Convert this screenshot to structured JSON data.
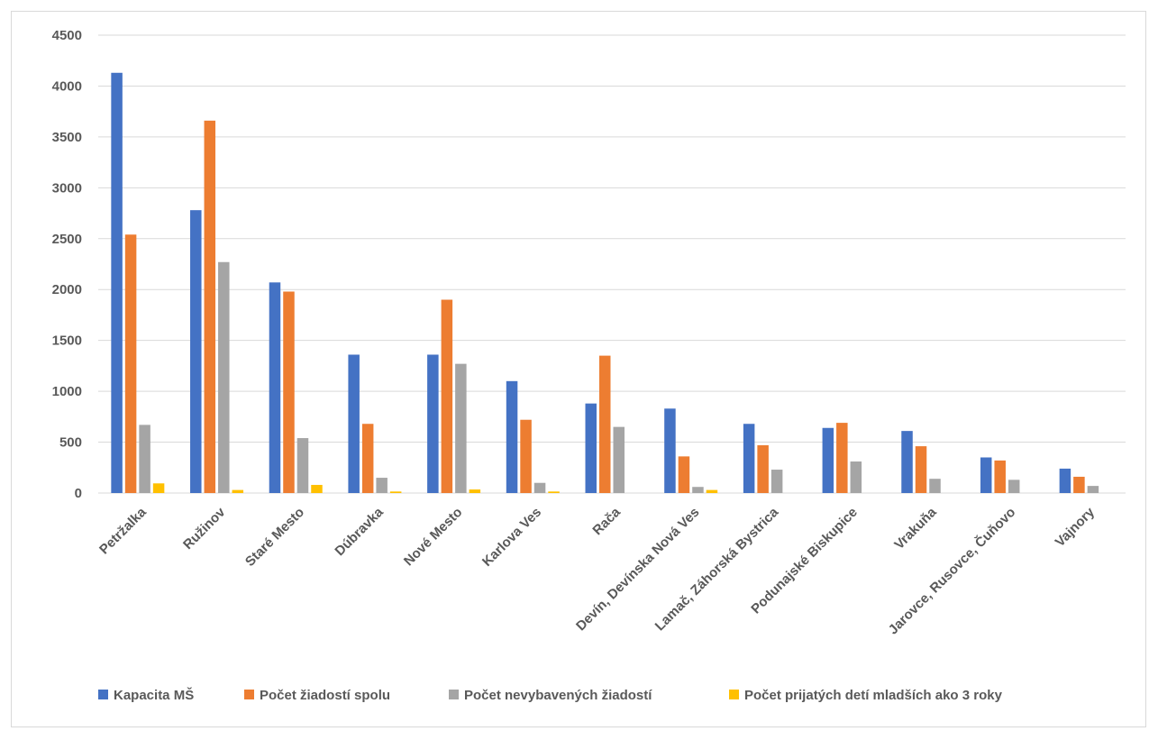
{
  "chart_data": {
    "type": "bar",
    "title": "",
    "xlabel": "",
    "ylabel": "",
    "ylim": [
      0,
      4500
    ],
    "yticks": [
      0,
      500,
      1000,
      1500,
      2000,
      2500,
      3000,
      3500,
      4000,
      4500
    ],
    "grid": true,
    "legend_position": "bottom",
    "categories": [
      "Petržalka",
      "Ružinov",
      "Staré Mesto",
      "Dúbravka",
      "Nové Mesto",
      "Karlova Ves",
      "Rača",
      "Devín, Devínska Nová Ves",
      "Lamač, Záhorská Bystrica",
      "Podunajské Biskupice",
      "Vrakuňa",
      "Jarovce, Rusovce, Čuňovo",
      "Vajnory"
    ],
    "series": [
      {
        "name": "Kapacita MŠ",
        "color": "#4472c4",
        "values": [
          4130,
          2780,
          2070,
          1360,
          1360,
          1100,
          880,
          830,
          680,
          640,
          610,
          350,
          240
        ]
      },
      {
        "name": "Počet žiadostí spolu",
        "color": "#ed7d31",
        "values": [
          2540,
          3660,
          1980,
          680,
          1900,
          720,
          1350,
          360,
          470,
          690,
          460,
          320,
          160
        ]
      },
      {
        "name": "Počet nevybavených žiadostí",
        "color": "#a5a5a5",
        "values": [
          670,
          2270,
          540,
          150,
          1270,
          100,
          650,
          60,
          230,
          310,
          140,
          130,
          70
        ]
      },
      {
        "name": "Počet prijatých detí mladších ako 3 roky",
        "color": "#ffc000",
        "values": [
          95,
          30,
          80,
          15,
          35,
          15,
          0,
          30,
          0,
          0,
          0,
          0,
          0
        ]
      }
    ]
  }
}
